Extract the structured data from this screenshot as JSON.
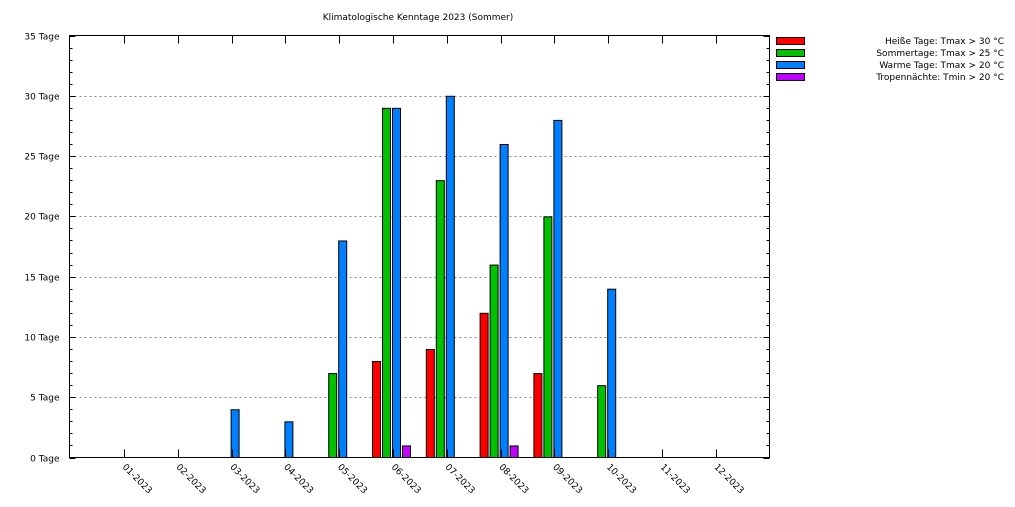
{
  "chart_data": {
    "type": "bar",
    "title": "Klimatologische Kenntage 2023 (Sommer)",
    "xlabel": "",
    "ylabel": "",
    "categories": [
      "01-2023",
      "02-2023",
      "03-2023",
      "04-2023",
      "05-2023",
      "06-2023",
      "07-2023",
      "08-2023",
      "09-2023",
      "10-2023",
      "11-2023",
      "12-2023"
    ],
    "ylim": [
      0,
      35
    ],
    "yticks": [
      0,
      5,
      10,
      15,
      20,
      25,
      30,
      35
    ],
    "ytick_labels": [
      "0 Tage",
      "5 Tage",
      "10 Tage",
      "15 Tage",
      "20 Tage",
      "25 Tage",
      "30 Tage",
      "35 Tage"
    ],
    "grid": true,
    "legend_position": "right",
    "series": [
      {
        "name": "Heiße Tage: Tmax > 30 °C",
        "color": "#ff0000",
        "values": [
          0,
          0,
          0,
          0,
          0,
          8,
          9,
          12,
          7,
          0,
          0,
          0
        ]
      },
      {
        "name": "Sommertage: Tmax > 25 °C",
        "color": "#00c000",
        "values": [
          0,
          0,
          0,
          0,
          7,
          29,
          23,
          16,
          20,
          6,
          0,
          0
        ]
      },
      {
        "name": "Warme Tage: Tmax > 20 °C",
        "color": "#0080ff",
        "values": [
          0,
          0,
          4,
          3,
          18,
          29,
          30,
          26,
          28,
          14,
          0,
          0
        ]
      },
      {
        "name": "Tropennächte: Tmin > 20 °C",
        "color": "#c000ff",
        "values": [
          0,
          0,
          0,
          0,
          0,
          1,
          0,
          1,
          0,
          0,
          0,
          0
        ]
      }
    ]
  }
}
